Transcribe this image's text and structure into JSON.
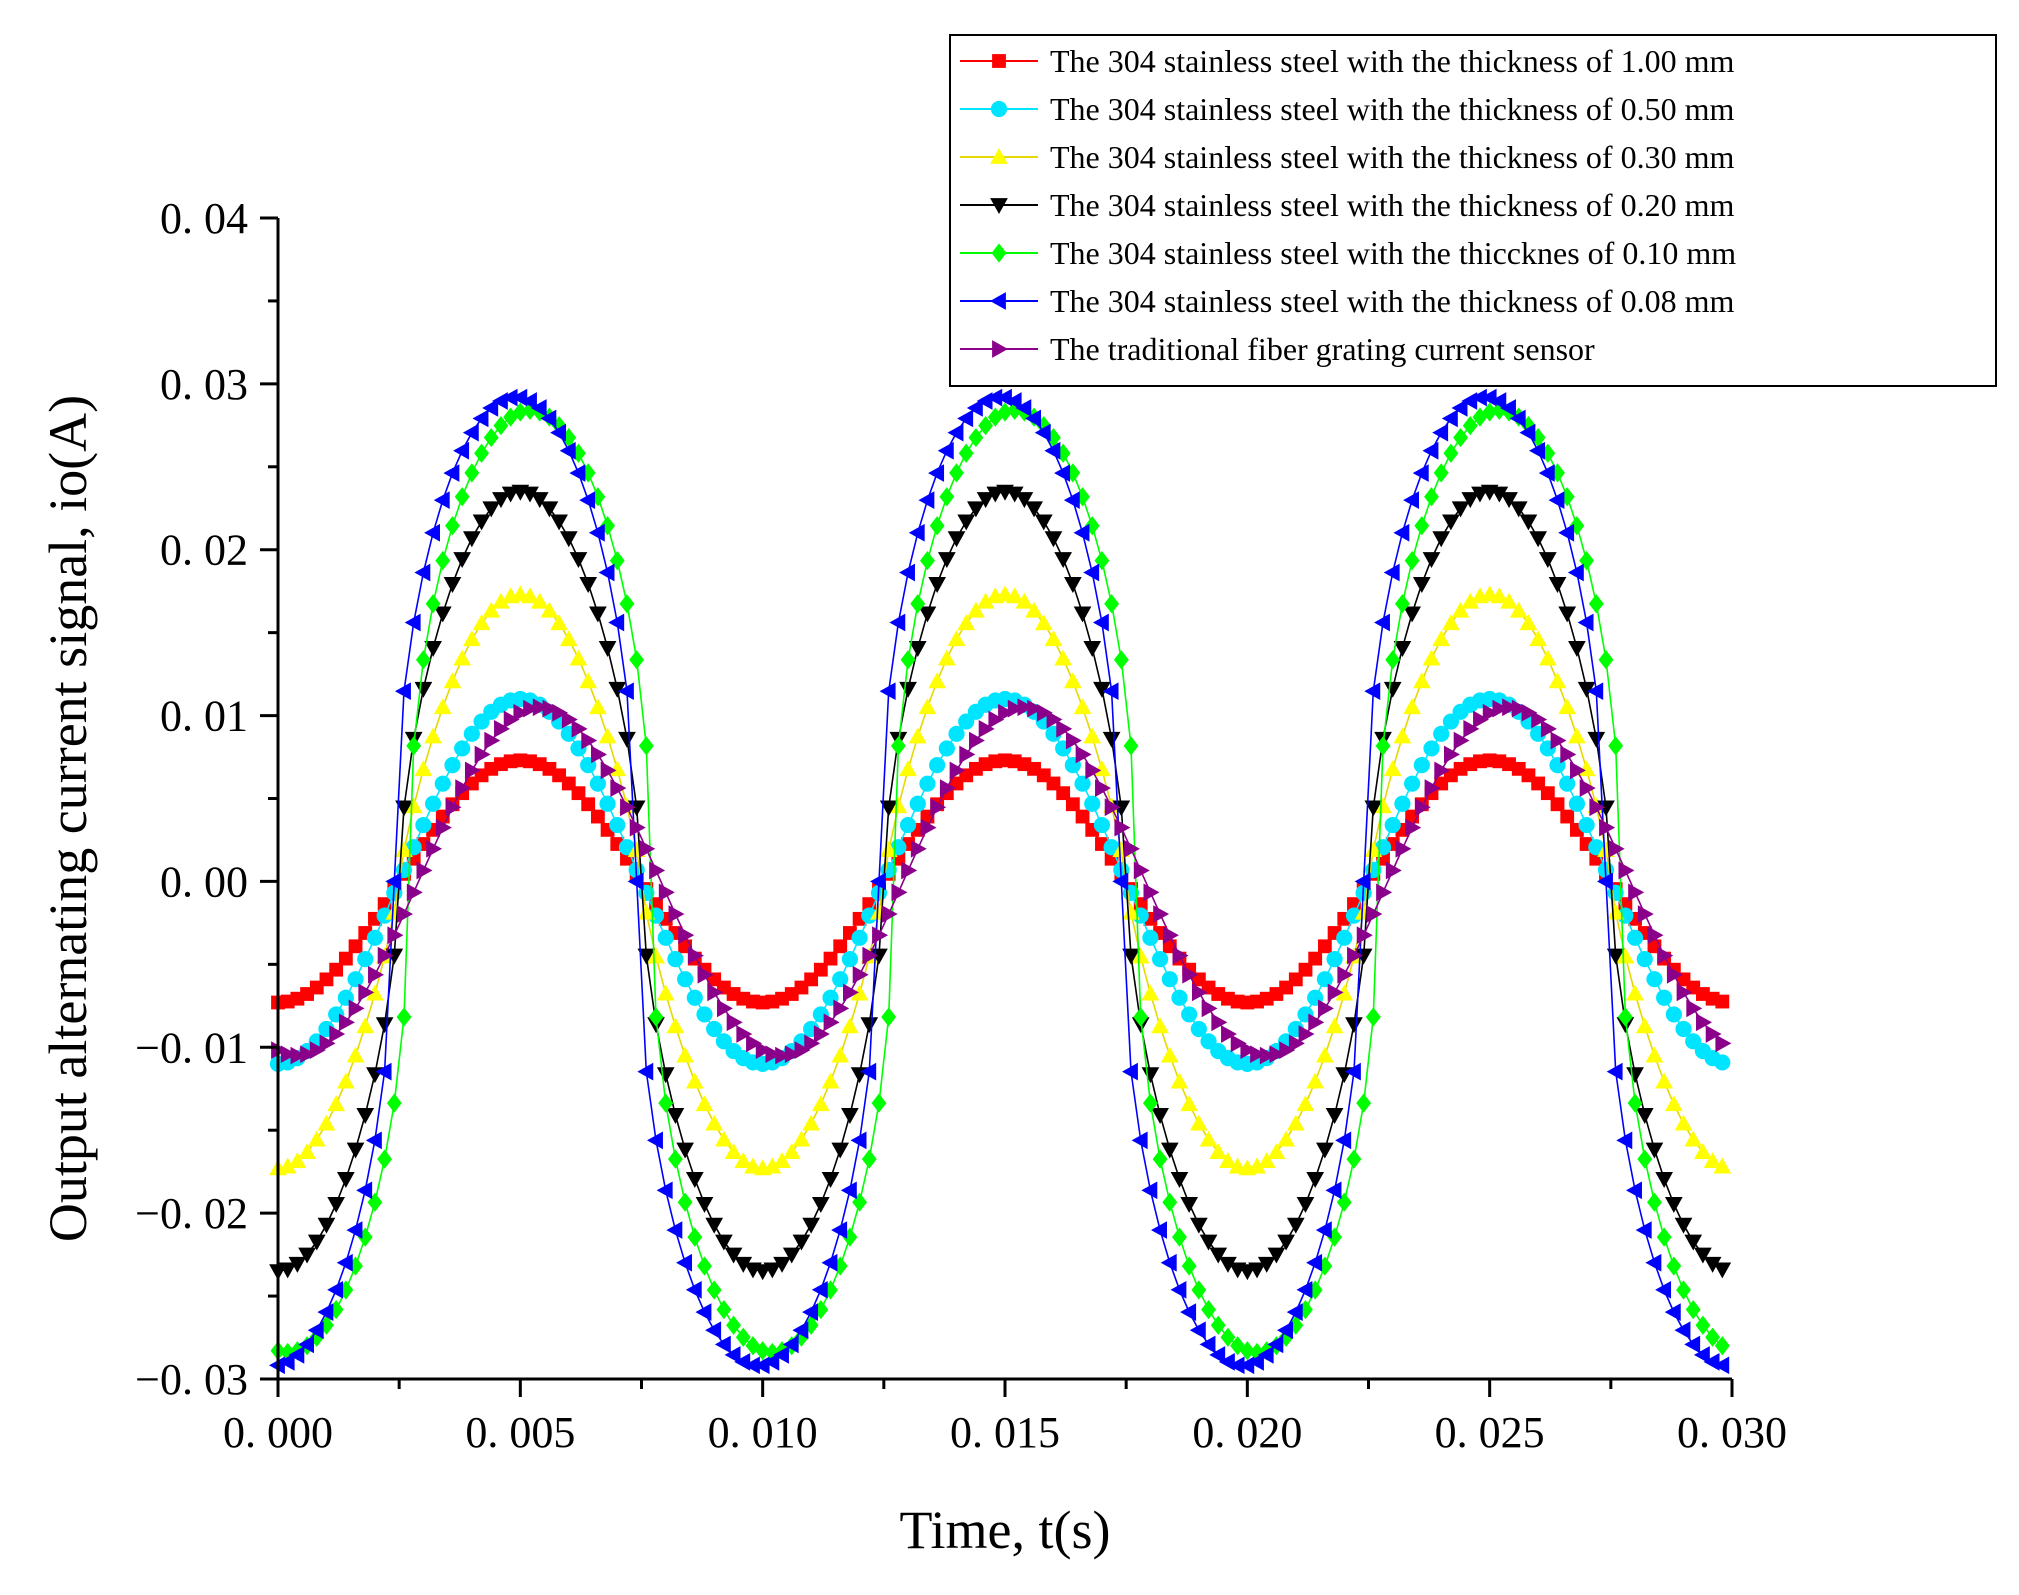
{
  "chart_data": {
    "type": "line",
    "title": "",
    "xlabel": "Time, t(s)",
    "ylabel": "Output alternating current signal, io(A)",
    "xlim": [
      0.0,
      0.03
    ],
    "ylim": [
      -0.03,
      0.04
    ],
    "xticks": [
      0.0,
      0.005,
      0.01,
      0.015,
      0.02,
      0.025,
      0.03
    ],
    "xtick_labels": [
      "0. 000",
      "0. 005",
      "0. 010",
      "0. 015",
      "0. 020",
      "0. 025",
      "0. 030"
    ],
    "yticks": [
      -0.03,
      -0.02,
      -0.01,
      0.0,
      0.01,
      0.02,
      0.03,
      0.04
    ],
    "ytick_labels": [
      "−0. 03",
      "−0. 02",
      "−0. 01",
      "0. 00",
      "0. 01",
      "0. 02",
      "0. 03",
      "0. 04"
    ],
    "grid": false,
    "legend_position": "top-right",
    "signal": {
      "form": "periodic sine-like, period 0.01 s, peaks at t = 0.005, 0.015, 0.025 s",
      "sample_step": 0.0002,
      "t_start": 0.0,
      "t_end": 0.0298
    },
    "series": [
      {
        "name": "The 304 stainless steel with the thickness of 1.00 mm",
        "color": "#ff0000",
        "marker": "square",
        "amplitude": 0.0073,
        "shape": 1.0,
        "phase": 0.0
      },
      {
        "name": "The 304 stainless steel with the thickness of 0.50 mm",
        "color": "#00e5ff",
        "marker": "circle",
        "amplitude": 0.011,
        "shape": 1.0,
        "phase": 0.0
      },
      {
        "name": "The 304 stainless steel with the thickness of 0.30 mm",
        "color": "#ffff00",
        "marker": "triangle-up",
        "amplitude": 0.0173,
        "shape": 0.8,
        "phase": 0.0
      },
      {
        "name": "The 304 stainless steel with the thickness of 0.20 mm",
        "color": "#000000",
        "marker": "triangle-down",
        "amplitude": 0.0235,
        "shape": 0.6,
        "phase": 0.0
      },
      {
        "name": "The 304 stainless steel with the thiccknes of 0.10 mm",
        "color": "#00ff00",
        "marker": "diamond",
        "amplitude": 0.0284,
        "shape": 0.45,
        "phase": 0.0002
      },
      {
        "name": "The 304 stainless steel with the thickness of 0.08 mm",
        "color": "#0000ff",
        "marker": "triangle-left",
        "amplitude": 0.0292,
        "shape": 0.45,
        "phase": -0.0001
      },
      {
        "name": "The traditional fiber grating current sensor",
        "color": "#8b008b",
        "marker": "triangle-right",
        "amplitude": 0.0105,
        "shape": 1.0,
        "phase": 0.0004
      }
    ]
  }
}
